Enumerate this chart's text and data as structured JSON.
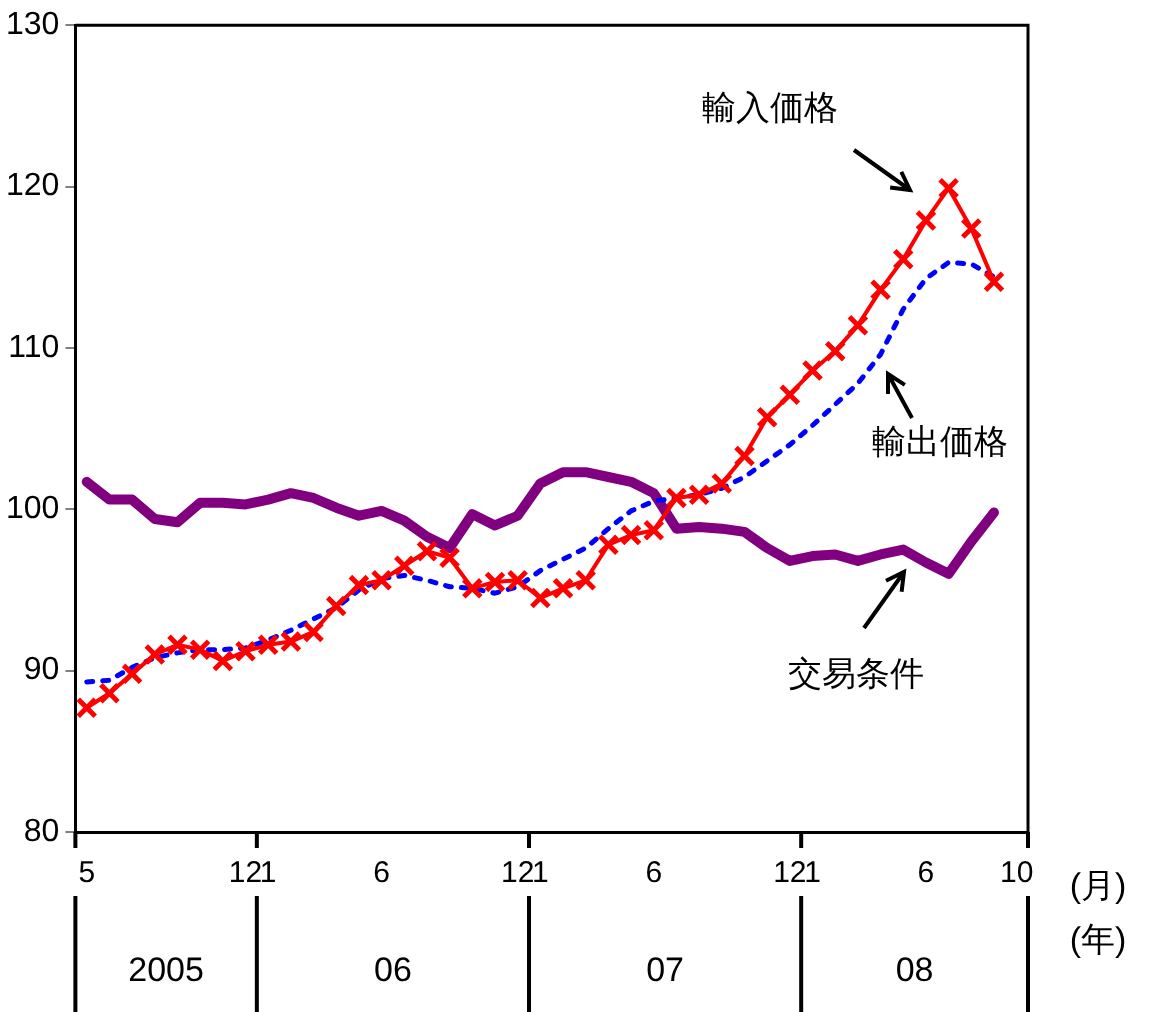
{
  "chart_data": {
    "type": "line",
    "categories": [
      "5",
      null,
      null,
      null,
      null,
      null,
      null,
      "12",
      "1",
      null,
      null,
      null,
      null,
      "6",
      null,
      null,
      null,
      null,
      null,
      "12",
      "1",
      null,
      null,
      null,
      null,
      "6",
      null,
      null,
      null,
      null,
      null,
      "12",
      "1",
      null,
      null,
      null,
      null,
      "6",
      null,
      null,
      null,
      "10"
    ],
    "series": [
      {
        "name": "輸入価格",
        "color": "#ff0000",
        "marker": "cross",
        "line_style": "solid",
        "values": [
          87.7,
          88.6,
          89.8,
          91.0,
          91.6,
          91.3,
          90.6,
          91.2,
          91.6,
          91.8,
          92.4,
          94.0,
          95.3,
          95.6,
          96.5,
          97.4,
          97.0,
          95.1,
          95.5,
          95.6,
          94.5,
          95.1,
          95.6,
          97.8,
          98.4,
          98.7,
          100.7,
          100.9,
          101.6,
          103.3,
          105.7,
          107.1,
          108.6,
          109.8,
          111.4,
          113.6,
          115.5,
          117.9,
          119.9,
          117.4,
          114.1,
          null
        ]
      },
      {
        "name": "輸出価格",
        "color": "#0000ff",
        "marker": "none",
        "line_style": "dotted",
        "values": [
          89.3,
          89.4,
          90.2,
          90.8,
          91.1,
          91.3,
          91.3,
          91.4,
          91.9,
          92.5,
          93.2,
          93.9,
          95.0,
          95.7,
          95.9,
          95.6,
          95.2,
          95.1,
          94.8,
          95.2,
          96.2,
          96.9,
          97.6,
          98.8,
          99.9,
          100.5,
          100.7,
          100.9,
          101.3,
          102.0,
          103.0,
          104.0,
          105.2,
          106.5,
          107.8,
          109.6,
          112.4,
          114.3,
          115.3,
          115.2,
          114.4,
          null
        ]
      },
      {
        "name": "交易条件",
        "color": "#800080",
        "marker": "none",
        "line_style": "solid",
        "values": [
          101.7,
          100.6,
          100.6,
          99.4,
          99.2,
          100.4,
          100.4,
          100.3,
          100.6,
          101.0,
          100.7,
          100.1,
          99.6,
          99.9,
          99.3,
          98.3,
          97.6,
          99.7,
          99.0,
          99.6,
          101.6,
          102.3,
          102.3,
          102.0,
          101.7,
          101.0,
          98.8,
          98.9,
          98.8,
          98.6,
          97.6,
          96.8,
          97.1,
          97.2,
          96.8,
          97.2,
          97.5,
          96.7,
          96.0,
          98.0,
          99.8,
          null
        ]
      }
    ],
    "ylim": [
      80,
      130
    ],
    "yticks": [
      80,
      90,
      100,
      110,
      120,
      130
    ],
    "xlabel": "(月)",
    "annotations": [
      "2005",
      "06",
      "07",
      "08",
      "(年)"
    ],
    "grid": false,
    "legend": false
  }
}
